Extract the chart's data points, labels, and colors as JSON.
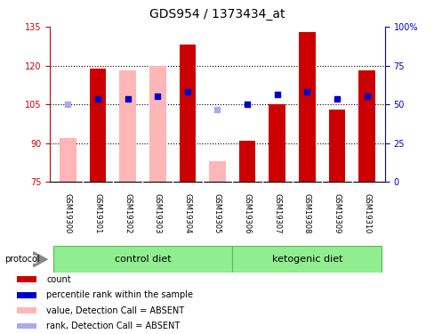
{
  "title": "GDS954 / 1373434_at",
  "samples": [
    "GSM19300",
    "GSM19301",
    "GSM19302",
    "GSM19303",
    "GSM19304",
    "GSM19305",
    "GSM19306",
    "GSM19307",
    "GSM19308",
    "GSM19309",
    "GSM19310"
  ],
  "red_bar_values": [
    null,
    119,
    null,
    null,
    128,
    null,
    91,
    105,
    133,
    103,
    118
  ],
  "pink_bar_values": [
    92,
    null,
    118,
    120,
    null,
    83,
    null,
    null,
    null,
    null,
    null
  ],
  "blue_square_values": [
    null,
    107,
    107,
    108,
    110,
    null,
    105,
    109,
    110,
    107,
    108
  ],
  "light_blue_square_values": [
    105,
    null,
    null,
    null,
    null,
    103,
    null,
    null,
    null,
    null,
    null
  ],
  "ylim_left": [
    75,
    135
  ],
  "ylim_right": [
    0,
    100
  ],
  "yticks_left": [
    75,
    90,
    105,
    120,
    135
  ],
  "yticks_right": [
    0,
    25,
    50,
    75,
    100
  ],
  "left_axis_color": "#cc0000",
  "right_axis_color": "#0000cc",
  "bar_width": 0.55,
  "ctrl_group": [
    0,
    5
  ],
  "keto_group": [
    6,
    10
  ],
  "group_colors": [
    "#90ee90",
    "#90ee90"
  ],
  "group_names": [
    "control diet",
    "ketogenic diet"
  ],
  "protocol_label": "protocol",
  "legend_items": [
    [
      "#cc0000",
      "count"
    ],
    [
      "#0000cc",
      "percentile rank within the sample"
    ],
    [
      "#ffb6b6",
      "value, Detection Call = ABSENT"
    ],
    [
      "#aaaaee",
      "rank, Detection Call = ABSENT"
    ]
  ],
  "title_fontsize": 10,
  "tick_fontsize": 7,
  "sample_fontsize": 6,
  "group_fontsize": 8,
  "legend_fontsize": 7
}
